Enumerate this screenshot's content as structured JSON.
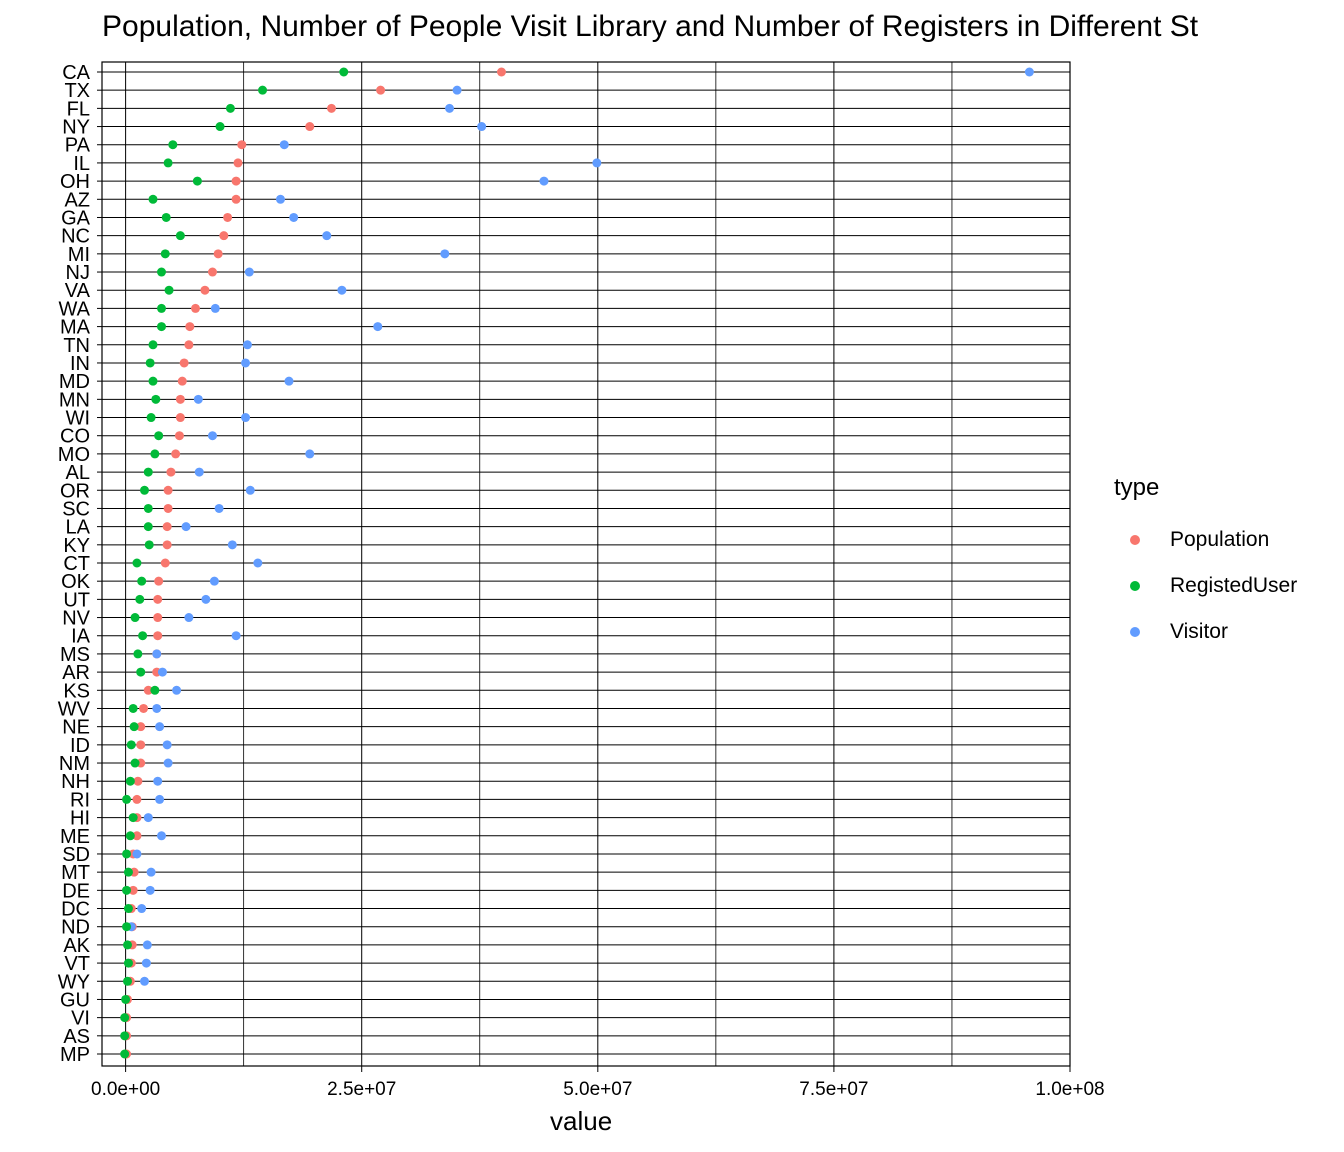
{
  "chart_data": {
    "type": "scatter",
    "title": "Population, Number of People Visit Library and Number of Registers in Different St",
    "xlabel": "value",
    "ylabel": "",
    "xlim": [
      -2500000,
      100000000
    ],
    "x_ticks": [
      0,
      25000000,
      50000000,
      75000000,
      100000000
    ],
    "x_tick_labels": [
      "0.0e+00",
      "2.5e+07",
      "5.0e+07",
      "7.5e+07",
      "1.0e+08"
    ],
    "grid": true,
    "legend": {
      "title": "type",
      "position": "right"
    },
    "categories": [
      "CA",
      "TX",
      "FL",
      "NY",
      "PA",
      "IL",
      "OH",
      "AZ",
      "GA",
      "NC",
      "MI",
      "NJ",
      "VA",
      "WA",
      "MA",
      "TN",
      "IN",
      "MD",
      "MN",
      "WI",
      "CO",
      "MO",
      "AL",
      "OR",
      "SC",
      "LA",
      "KY",
      "CT",
      "OK",
      "UT",
      "NV",
      "IA",
      "MS",
      "AR",
      "KS",
      "WV",
      "NE",
      "ID",
      "NM",
      "NH",
      "RI",
      "HI",
      "ME",
      "SD",
      "MT",
      "DE",
      "DC",
      "ND",
      "AK",
      "VT",
      "WY",
      "GU",
      "VI",
      "AS",
      "MP"
    ],
    "series": [
      {
        "name": "Population",
        "color": "#F8766D",
        "values": [
          39800000,
          27000000,
          21800000,
          19500000,
          12300000,
          11900000,
          11700000,
          11700000,
          10800000,
          10400000,
          9800000,
          9200000,
          8400000,
          7400000,
          6800000,
          6700000,
          6200000,
          6000000,
          5800000,
          5800000,
          5700000,
          5300000,
          4800000,
          4500000,
          4500000,
          4400000,
          4400000,
          4200000,
          3500000,
          3400000,
          3400000,
          3400000,
          3300000,
          3300000,
          2400000,
          1900000,
          1600000,
          1600000,
          1600000,
          1300000,
          1200000,
          1200000,
          1200000,
          800000,
          900000,
          800000,
          600000,
          700000,
          700000,
          600000,
          500000,
          200000,
          100000,
          100000,
          100000
        ]
      },
      {
        "name": "RegistedUser",
        "color": "#00BA38",
        "values": [
          23100000,
          14500000,
          11100000,
          10000000,
          5000000,
          4500000,
          7600000,
          2900000,
          4300000,
          5800000,
          4200000,
          3800000,
          4600000,
          3800000,
          3800000,
          2900000,
          2600000,
          2900000,
          3200000,
          2700000,
          3500000,
          3100000,
          2400000,
          2000000,
          2400000,
          2400000,
          2500000,
          1200000,
          1700000,
          1500000,
          1000000,
          1800000,
          1300000,
          1600000,
          3100000,
          800000,
          900000,
          600000,
          1000000,
          500000,
          100000,
          800000,
          500000,
          100000,
          300000,
          100000,
          300000,
          100000,
          200000,
          300000,
          200000,
          0,
          -100000,
          -100000,
          -100000
        ]
      },
      {
        "name": "Visitor",
        "color": "#619CFF",
        "values": [
          95700000,
          35100000,
          34300000,
          37700000,
          16800000,
          49900000,
          44300000,
          16400000,
          17800000,
          21300000,
          33800000,
          13100000,
          22900000,
          9500000,
          26700000,
          12900000,
          12700000,
          17300000,
          7700000,
          12700000,
          9200000,
          19500000,
          7800000,
          13200000,
          9900000,
          6400000,
          11300000,
          14000000,
          9400000,
          8500000,
          6700000,
          11700000,
          3300000,
          3900000,
          5400000,
          3300000,
          3600000,
          4400000,
          4500000,
          3400000,
          3600000,
          2400000,
          3800000,
          1200000,
          2700000,
          2600000,
          1700000,
          600000,
          2300000,
          2200000,
          2000000,
          null,
          null,
          null,
          null
        ]
      }
    ]
  }
}
